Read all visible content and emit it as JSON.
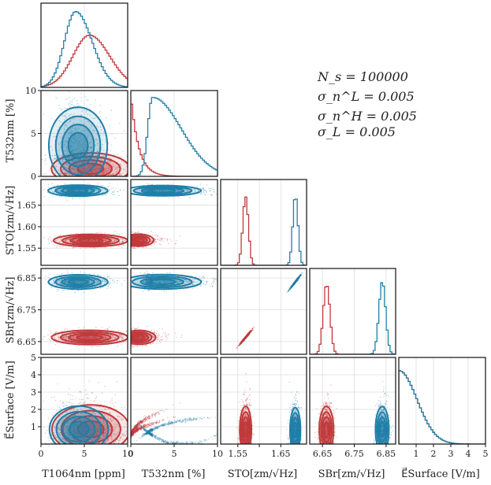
{
  "colors": {
    "red": "#c0393b",
    "blue": "#1f7fa8",
    "grid": "#dddddd",
    "frame": "#111111"
  },
  "stats_box": [
    "N_s = 100000",
    "σ_n^L = 0.005",
    "σ_n^H = 0.005",
    "σ_L = 0.005"
  ],
  "chart_data": {
    "type": "corner",
    "title": "",
    "parameters": [
      {
        "label": "T1064nm [ppm]",
        "range": [
          0,
          10
        ],
        "ticks": [
          0,
          5,
          10
        ],
        "tick_labels": [
          "0",
          "5",
          "10"
        ]
      },
      {
        "label": "T532nm [%]",
        "range": [
          0,
          10
        ],
        "ticks": [
          0,
          5,
          10
        ],
        "tick_labels": [
          "0",
          "5",
          "10"
        ]
      },
      {
        "label": "STO[zm/√Hz]",
        "range": [
          1.51,
          1.71
        ],
        "ticks": [
          1.55,
          1.6,
          1.65
        ],
        "tick_labels": [
          "1.55",
          "1.60",
          "1.65"
        ],
        "tick_labels_x": [
          "1.55",
          "",
          "1.65"
        ]
      },
      {
        "label": "SBr[zm/√Hz]",
        "range": [
          6.61,
          6.88
        ],
        "ticks": [
          6.65,
          6.75,
          6.85
        ],
        "tick_labels": [
          "6.65",
          "6.75",
          "6.85"
        ]
      },
      {
        "label": "E⃗Surface [V/m]",
        "range": [
          0,
          5
        ],
        "ticks": [
          1,
          2,
          3,
          4,
          5
        ],
        "tick_labels": [
          "1",
          "2",
          "3",
          "4",
          "5"
        ]
      }
    ],
    "series": [
      {
        "name": "red",
        "means": [
          5.5,
          0.7,
          1.567,
          6.663,
          0.8
        ],
        "marginals": [
          {
            "type": "skewed",
            "peak": 5.6,
            "width_lo": 1.9,
            "width_hi": 2.3,
            "height": 0.62
          },
          {
            "type": "decay",
            "scale": 0.9,
            "height": 0.95
          },
          {
            "type": "gauss",
            "mu": 1.568,
            "sigma": 0.0065,
            "height": 0.8
          },
          {
            "type": "gauss",
            "mu": 6.663,
            "sigma": 0.0105,
            "height": 0.82
          },
          {
            "type": "halfgauss",
            "sigma": 1.05,
            "height": 0.85
          }
        ]
      },
      {
        "name": "blue",
        "means": [
          4.0,
          3.5,
          1.685,
          6.838,
          0.8
        ],
        "marginals": [
          {
            "type": "skewed",
            "peak": 4.0,
            "width_lo": 1.3,
            "width_hi": 1.9,
            "height": 0.9
          },
          {
            "type": "skewed",
            "peak": 2.5,
            "width_lo": 0.55,
            "width_hi": 3.3,
            "height": 0.92
          },
          {
            "type": "gauss",
            "mu": 1.684,
            "sigma": 0.006,
            "height": 0.82
          },
          {
            "type": "gauss",
            "mu": 6.838,
            "sigma": 0.0105,
            "height": 0.85
          },
          {
            "type": "halfgauss",
            "sigma": 1.05,
            "height": 0.85
          }
        ]
      }
    ]
  }
}
